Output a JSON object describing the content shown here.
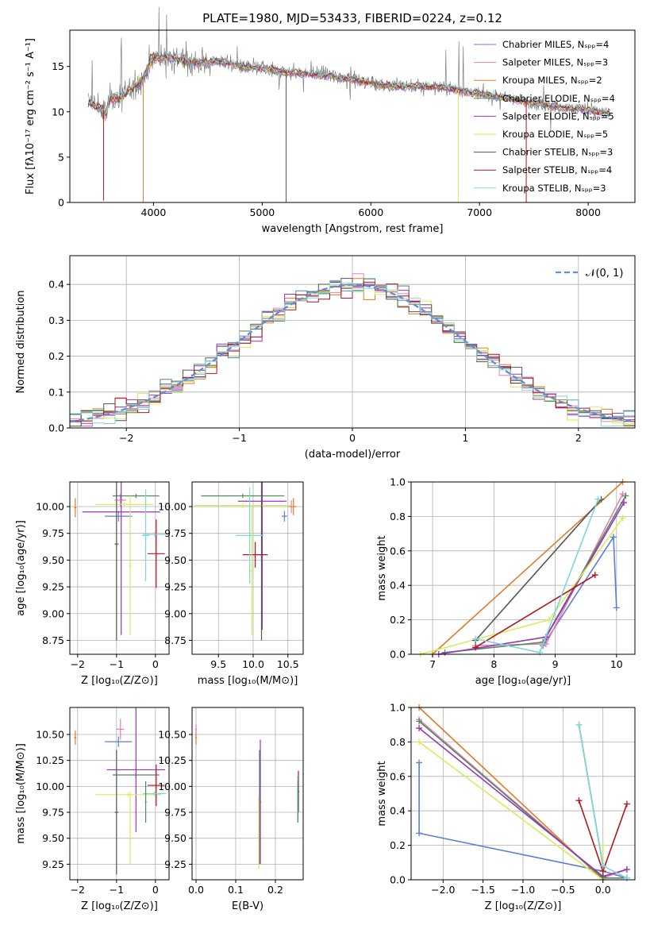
{
  "figure": {
    "title": "PLATE=1980, MJD=53433, FIBERID=0224, z=0.12"
  },
  "colors": {
    "chabrier_miles": "#5b7fd6",
    "salpeter_miles": "#e87fb0",
    "kroupa_miles": "#e07b28",
    "chabrier_elodie": "#4f8a63",
    "salpeter_elodie": "#9b32b8",
    "kroupa_elodie": "#d9ea5a",
    "chabrier_stelib": "#555555",
    "salpeter_stelib": "#b0171c",
    "kroupa_stelib": "#7fd7da",
    "data": "#808080",
    "gaussian": "#5b8fd6",
    "grid": "#b0b0b0"
  },
  "chart_data": [
    {
      "id": "spectrum",
      "type": "line",
      "xlabel": "wavelength [Angstrom, rest frame]",
      "ylabel": "Flux [fλ10⁻¹⁷ erg cm⁻² s⁻¹ A⁻¹]",
      "xlim": [
        3230,
        8430
      ],
      "ylim": [
        0,
        19
      ],
      "xticks": [
        4000,
        5000,
        6000,
        7000,
        8000
      ],
      "yticks": [
        0,
        5,
        10,
        15
      ],
      "grid": false,
      "legend_position": "top-right",
      "legend": [
        {
          "label": "Chabrier MILES, Nₛₚₚ=4",
          "color": "chabrier_miles"
        },
        {
          "label": "Salpeter MILES, Nₛₚₚ=3",
          "color": "salpeter_miles"
        },
        {
          "label": "Kroupa MILES, Nₛₚₚ=2",
          "color": "kroupa_miles"
        },
        {
          "label": "Chabrier ELODIE, Nₛₚₚ=4",
          "color": "chabrier_elodie"
        },
        {
          "label": "Salpeter ELODIE, Nₛₚₚ=5",
          "color": "salpeter_elodie"
        },
        {
          "label": "Kroupa ELODIE, Nₛₚₚ=5",
          "color": "kroupa_elodie"
        },
        {
          "label": "Chabrier STELIB, Nₛₚₚ=3",
          "color": "chabrier_stelib"
        },
        {
          "label": "Salpeter STELIB, Nₛₚₚ=4",
          "color": "salpeter_stelib"
        },
        {
          "label": "Kroupa STELIB, Nₛₚₚ=3",
          "color": "kroupa_stelib"
        }
      ],
      "continuum": {
        "x": [
          3400,
          3500,
          3560,
          3600,
          3700,
          3800,
          3900,
          3950,
          4000,
          4100,
          4200,
          4300,
          4400,
          4600,
          4800,
          5000,
          5200,
          5400,
          5600,
          5800,
          6000,
          6200,
          6400,
          6600,
          6800,
          7000,
          7200,
          7400,
          7600,
          7800,
          8000,
          8200
        ],
        "y": [
          11.0,
          10.5,
          9.8,
          11.4,
          11.6,
          12.6,
          13.6,
          15.0,
          16.0,
          16.0,
          16.0,
          15.6,
          15.4,
          15.6,
          15.0,
          14.8,
          14.4,
          14.2,
          14.0,
          13.6,
          13.2,
          12.8,
          12.8,
          12.8,
          12.4,
          12.0,
          11.6,
          11.2,
          10.8,
          10.4,
          10.2,
          9.8
        ]
      },
      "dropouts": [
        {
          "series": "salpeter_stelib",
          "x": 3540,
          "bottom": 0.2
        },
        {
          "series": "kroupa_miles",
          "x": 3905,
          "bottom": 0
        },
        {
          "series": "chabrier_stelib",
          "x": 5220,
          "bottom": 0
        },
        {
          "series": "kroupa_elodie",
          "x": 6805,
          "bottom": 0
        },
        {
          "series": "salpeter_stelib",
          "x": 7430,
          "bottom": 0
        }
      ]
    },
    {
      "id": "residuals",
      "type": "histogram",
      "xlabel": "(data-model)/error",
      "ylabel": "Normed distribution",
      "xlim": [
        -2.5,
        2.5
      ],
      "ylim": [
        0,
        0.48
      ],
      "xticks": [
        -2,
        -1,
        0,
        1,
        2
      ],
      "yticks": [
        0.0,
        0.1,
        0.2,
        0.3,
        0.4
      ],
      "grid": true,
      "legend_position": "top-right",
      "legend": [
        {
          "label": "𝒩(0, 1)",
          "color": "gaussian",
          "style": "dashed"
        }
      ],
      "bin_width": 0.1,
      "series_colors": [
        "chabrier_miles",
        "salpeter_miles",
        "kroupa_miles",
        "chabrier_elodie",
        "salpeter_elodie",
        "kroupa_elodie",
        "chabrier_stelib",
        "salpeter_stelib",
        "kroupa_stelib"
      ]
    },
    {
      "id": "age_vs_Z",
      "type": "errorbar",
      "xlabel": "Z [log₁₀(Z/Z⊙)]",
      "ylabel": "age  [log₁₀(age/yr)]",
      "xlim": [
        -2.2,
        0.35
      ],
      "ylim": [
        8.62,
        10.23
      ],
      "xticks": [
        -2,
        -1,
        0
      ],
      "yticks": [
        8.75,
        9.0,
        9.25,
        9.5,
        9.75,
        10.0
      ],
      "grid": true,
      "points": [
        {
          "series": "chabrier_miles",
          "x": -0.95,
          "xerr": 0.35,
          "y": 9.91,
          "yerr": 0.05
        },
        {
          "series": "salpeter_miles",
          "x": -0.9,
          "xerr": 0.15,
          "y": 10.06,
          "yerr": 0.06
        },
        {
          "series": "kroupa_miles",
          "x": -2.06,
          "xerr": 0.03,
          "y": 9.99,
          "yerr": 0.09
        },
        {
          "series": "chabrier_elodie",
          "x": -0.5,
          "xerr": 0.6,
          "y": 10.1,
          "yerr": 0.02
        },
        {
          "series": "salpeter_elodie",
          "x": -0.88,
          "xerr": 1.0,
          "y": 9.95,
          "yerr": 1.15
        },
        {
          "series": "kroupa_elodie",
          "x": -0.8,
          "xerr": 0.75,
          "y": 10.02,
          "yerr": 0.02
        },
        {
          "series": "chabrier_stelib",
          "x": -1.0,
          "xerr": 0.05,
          "y": 9.65,
          "yerr": 0.9
        },
        {
          "series": "salpeter_stelib",
          "x": 0.02,
          "xerr": 0.22,
          "y": 9.56,
          "yerr": 0.32
        },
        {
          "series": "kroupa_stelib",
          "x": -0.25,
          "xerr": 0.1,
          "y": 9.73,
          "yerr": 0.43
        },
        {
          "series": "kroupa_elodie",
          "x": -0.65,
          "xerr": 0.03,
          "y": 9.45,
          "yerr": 0.65
        },
        {
          "series": "kroupa_stelib",
          "x": -0.02,
          "xerr": 0.3,
          "y": 9.74,
          "yerr": 0.02
        }
      ]
    },
    {
      "id": "age_vs_mass",
      "type": "errorbar",
      "xlabel": "mass [log₁₀(M/M⊙)]",
      "ylabel": "",
      "xlim": [
        9.12,
        10.72
      ],
      "ylim": [
        8.62,
        10.23
      ],
      "xticks": [
        9.5,
        10.0,
        10.5
      ],
      "yticks": [
        8.75,
        9.0,
        9.25,
        9.5,
        9.75,
        10.0
      ],
      "grid": true,
      "points": [
        {
          "series": "chabrier_miles",
          "x": 10.45,
          "xerr": 0.04,
          "y": 9.91,
          "yerr": 0.05
        },
        {
          "series": "salpeter_miles",
          "x": 10.55,
          "xerr": 0.05,
          "y": 10.0,
          "yerr": 0.06
        },
        {
          "series": "kroupa_miles",
          "x": 10.58,
          "xerr": 0.04,
          "y": 10.0,
          "yerr": 0.08
        },
        {
          "series": "chabrier_elodie",
          "x": 9.85,
          "xerr": 0.6,
          "y": 10.1,
          "yerr": 0.02
        },
        {
          "series": "salpeter_elodie",
          "x": 10.13,
          "xerr": 0.35,
          "y": 10.05,
          "yerr": 1.2
        },
        {
          "series": "kroupa_elodie",
          "x": 9.85,
          "xerr": 0.7,
          "y": 10.01,
          "yerr": 0.02
        },
        {
          "series": "chabrier_stelib",
          "x": 10.12,
          "xerr": 0.03,
          "y": 9.55,
          "yerr": 0.8
        },
        {
          "series": "salpeter_stelib",
          "x": 10.03,
          "xerr": 0.18,
          "y": 9.55,
          "yerr": 0.12
        },
        {
          "series": "kroupa_stelib",
          "x": 9.95,
          "xerr": 0.2,
          "y": 9.73,
          "yerr": 0.45
        },
        {
          "series": "kroupa_elodie",
          "x": 9.98,
          "xerr": 0.02,
          "y": 9.4,
          "yerr": 0.6
        }
      ]
    },
    {
      "id": "weight_vs_age",
      "type": "line",
      "xlabel": "age  [log₁₀(age/yr)]",
      "ylabel": "mass weight",
      "xlim": [
        6.65,
        10.3
      ],
      "ylim": [
        0,
        1.0
      ],
      "xticks": [
        7,
        8,
        9,
        10
      ],
      "yticks": [
        0.0,
        0.2,
        0.4,
        0.6,
        0.8,
        1.0
      ],
      "grid": true,
      "series": [
        {
          "color": "chabrier_miles",
          "x": [
            8.8,
            9.95,
            10.0
          ],
          "y": [
            0.05,
            0.68,
            0.27
          ]
        },
        {
          "color": "salpeter_miles",
          "x": [
            7.7,
            8.85,
            10.1
          ],
          "y": [
            0.05,
            0.06,
            0.93
          ]
        },
        {
          "color": "kroupa_miles",
          "x": [
            7.0,
            10.1
          ],
          "y": [
            0.0,
            1.0
          ]
        },
        {
          "color": "chabrier_elodie",
          "x": [
            7.2,
            8.8,
            10.15
          ],
          "y": [
            0.01,
            0.07,
            0.92
          ]
        },
        {
          "color": "salpeter_elodie",
          "x": [
            7.1,
            8.85,
            10.12
          ],
          "y": [
            0.0,
            0.1,
            0.88
          ]
        },
        {
          "color": "kroupa_elodie",
          "x": [
            6.8,
            8.9,
            10.1
          ],
          "y": [
            0.0,
            0.2,
            0.79
          ]
        },
        {
          "color": "chabrier_stelib",
          "x": [
            7.7,
            9.75
          ],
          "y": [
            0.08,
            0.9
          ]
        },
        {
          "color": "salpeter_stelib",
          "x": [
            7.7,
            9.65
          ],
          "y": [
            0.04,
            0.46
          ]
        },
        {
          "color": "kroupa_stelib",
          "x": [
            7.7,
            8.75,
            9.7
          ],
          "y": [
            0.09,
            0.01,
            0.9
          ]
        }
      ]
    },
    {
      "id": "mass_vs_Z",
      "type": "errorbar",
      "xlabel": "Z [log₁₀(Z/Z⊙)]",
      "ylabel": "mass [log₁₀(M/M⊙)]",
      "xlim": [
        -2.2,
        0.35
      ],
      "ylim": [
        9.1,
        10.76
      ],
      "xticks": [
        -2,
        -1,
        0
      ],
      "yticks": [
        9.25,
        9.5,
        9.75,
        10.0,
        10.25,
        10.5
      ],
      "grid": true,
      "points": [
        {
          "series": "chabrier_miles",
          "x": -0.95,
          "xerr": 0.35,
          "y": 10.43,
          "yerr": 0.05
        },
        {
          "series": "salpeter_miles",
          "x": -0.9,
          "xerr": 0.1,
          "y": 10.55,
          "yerr": 0.1
        },
        {
          "series": "kroupa_miles",
          "x": -2.06,
          "xerr": 0.03,
          "y": 10.47,
          "yerr": 0.07
        },
        {
          "series": "chabrier_elodie",
          "x": -0.5,
          "xerr": 0.6,
          "y": 10.11,
          "yerr": 0.02
        },
        {
          "series": "salpeter_elodie",
          "x": -0.5,
          "xerr": 0.75,
          "y": 10.16,
          "yerr": 0.6
        },
        {
          "series": "kroupa_elodie",
          "x": -0.7,
          "xerr": 0.85,
          "y": 9.92,
          "yerr": 0.02
        },
        {
          "series": "chabrier_stelib",
          "x": -1.0,
          "xerr": 0.05,
          "y": 9.75,
          "yerr": 0.6
        },
        {
          "series": "salpeter_stelib",
          "x": 0.02,
          "xerr": 0.22,
          "y": 10.01,
          "yerr": 0.2
        },
        {
          "series": "kroupa_stelib",
          "x": -0.02,
          "xerr": 0.3,
          "y": 9.93,
          "yerr": 0.02
        },
        {
          "series": "chabrier_elodie",
          "x": -0.25,
          "xerr": 0.02,
          "y": 9.85,
          "yerr": 0.2
        },
        {
          "series": "kroupa_elodie",
          "x": -0.65,
          "xerr": 0.02,
          "y": 9.6,
          "yerr": 0.35
        }
      ]
    },
    {
      "id": "mass_vs_ebv",
      "type": "errorbar",
      "xlabel": "E(B-V)",
      "ylabel": "",
      "xlim": [
        -0.01,
        0.27
      ],
      "ylim": [
        9.1,
        10.76
      ],
      "xticks": [
        0.0,
        0.1,
        0.2
      ],
      "yticks": [
        9.25,
        9.5,
        9.75,
        10.0,
        10.25,
        10.5
      ],
      "grid": true,
      "points": [
        {
          "series": "kroupa_miles",
          "x": 0.0,
          "xerr": 0.002,
          "y": 10.47,
          "yerr": 0.07
        },
        {
          "series": "salpeter_miles",
          "x": 0.0,
          "xerr": 0.002,
          "y": 10.55,
          "yerr": 0.05
        },
        {
          "series": "chabrier_elodie",
          "x": 0.16,
          "xerr": 0.002,
          "y": 9.8,
          "yerr": 0.55
        },
        {
          "series": "salpeter_elodie",
          "x": 0.162,
          "xerr": 0.002,
          "y": 9.85,
          "yerr": 0.6
        },
        {
          "series": "kroupa_elodie",
          "x": 0.158,
          "xerr": 0.002,
          "y": 9.55,
          "yerr": 0.35
        },
        {
          "series": "salpeter_stelib",
          "x": 0.258,
          "xerr": 0.002,
          "y": 9.95,
          "yerr": 0.2
        },
        {
          "series": "kroupa_stelib",
          "x": 0.256,
          "xerr": 0.002,
          "y": 9.88,
          "yerr": 0.22
        },
        {
          "series": "chabrier_elodie",
          "x": 0.257,
          "xerr": 0.002,
          "y": 9.85,
          "yerr": 0.2
        }
      ]
    },
    {
      "id": "weight_vs_Z",
      "type": "line",
      "xlabel": "Z [log₁₀(Z/Z⊙)]",
      "ylabel": "mass weight",
      "xlim": [
        -2.4,
        0.4
      ],
      "ylim": [
        0,
        1.0
      ],
      "xticks": [
        -2.0,
        -1.5,
        -1.0,
        -0.5,
        0.0
      ],
      "yticks": [
        0.0,
        0.2,
        0.4,
        0.6,
        0.8,
        1.0
      ],
      "grid": true,
      "series": [
        {
          "color": "chabrier_miles",
          "x": [
            -2.3,
            -2.3,
            0.0,
            0.3
          ],
          "y": [
            0.68,
            0.27,
            0.05,
            0.01
          ]
        },
        {
          "color": "salpeter_miles",
          "x": [
            -2.3,
            0.0,
            0.3
          ],
          "y": [
            0.93,
            0.01,
            0.06
          ]
        },
        {
          "color": "kroupa_miles",
          "x": [
            -2.3,
            0.0
          ],
          "y": [
            1.0,
            0.0
          ]
        },
        {
          "color": "chabrier_elodie",
          "x": [
            -2.3,
            0.0,
            0.3
          ],
          "y": [
            0.92,
            0.01,
            0.01
          ]
        },
        {
          "color": "salpeter_elodie",
          "x": [
            -2.3,
            0.0,
            0.3
          ],
          "y": [
            0.88,
            0.02,
            0.06
          ]
        },
        {
          "color": "kroupa_elodie",
          "x": [
            -2.3,
            0.0,
            0.0
          ],
          "y": [
            0.8,
            0.0,
            0.2
          ]
        },
        {
          "color": "chabrier_stelib",
          "x": [
            -0.3,
            0.0,
            0.0
          ],
          "y": [
            0.9,
            0.08,
            0.02
          ]
        },
        {
          "color": "salpeter_stelib",
          "x": [
            -0.3,
            0.0,
            0.3
          ],
          "y": [
            0.46,
            0.05,
            0.44
          ]
        },
        {
          "color": "kroupa_stelib",
          "x": [
            -0.3,
            0.0,
            0.3
          ],
          "y": [
            0.9,
            0.08,
            0.01
          ]
        }
      ]
    }
  ]
}
